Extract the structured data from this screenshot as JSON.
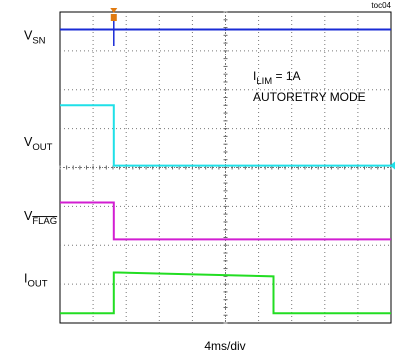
{
  "figure_id": "toc04",
  "chart_data": {
    "type": "line",
    "title": "",
    "xlabel": "4ms/div",
    "ylabel": "",
    "x_divisions": 10,
    "y_divisions": 8,
    "xlim": [
      0,
      40
    ],
    "x_unit": "ms",
    "grid": true,
    "trigger_time_ms": 6.5,
    "annotation": {
      "line1_main": "I",
      "line1_sub": "LIM",
      "line1_rest": " = 1A",
      "line2": "AUTORETRY MODE"
    },
    "channels": [
      {
        "label_main": "V",
        "label_sub": "SN",
        "label_overline": false,
        "color": "#1a2bd6",
        "ground_div": 7.55,
        "points": [
          [
            0,
            0
          ],
          [
            40,
            0
          ]
        ]
      },
      {
        "label_main": "V",
        "label_sub": "OUT",
        "label_overline": false,
        "color": "#1fe0e8",
        "ground_div": 4.05,
        "marker_div": 4.05,
        "points": [
          [
            0,
            1.55
          ],
          [
            6.5,
            1.55
          ],
          [
            6.5,
            0
          ],
          [
            40,
            0
          ]
        ]
      },
      {
        "label_main": "V",
        "label_sub": "FLAG",
        "label_overline": true,
        "color": "#d21ed2",
        "ground_div": 2.15,
        "points": [
          [
            0,
            0.95
          ],
          [
            6.5,
            0.95
          ],
          [
            6.5,
            0
          ],
          [
            40,
            0
          ]
        ]
      },
      {
        "label_main": "I",
        "label_sub": "OUT",
        "label_overline": false,
        "color": "#22dd22",
        "ground_div": 0.25,
        "points": [
          [
            0,
            0
          ],
          [
            6.5,
            0
          ],
          [
            6.5,
            1.05
          ],
          [
            7.0,
            1.05
          ],
          [
            25.8,
            0.95
          ],
          [
            25.8,
            0
          ],
          [
            40,
            0
          ]
        ]
      }
    ]
  }
}
